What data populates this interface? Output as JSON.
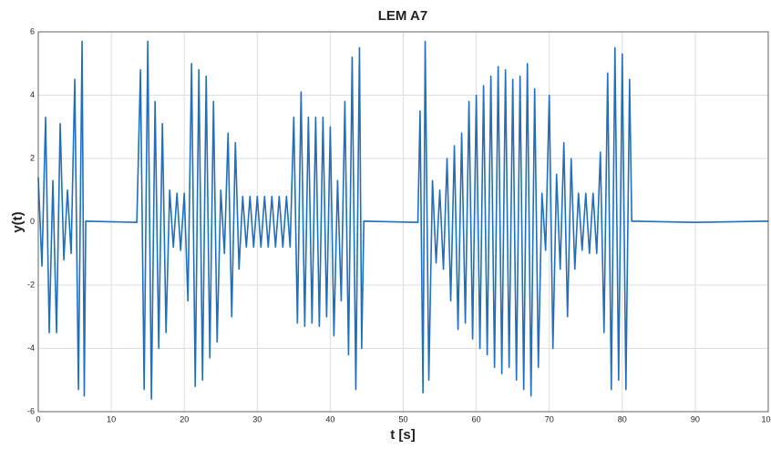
{
  "chart_data": {
    "type": "line",
    "title": "LEM A7",
    "x_label": "t [s]",
    "y_label": "y(t)",
    "xlim": [
      0,
      100
    ],
    "ylim": [
      -6,
      6
    ],
    "xticks": [
      0,
      10,
      20,
      30,
      40,
      50,
      60,
      70,
      80,
      90,
      100
    ],
    "yticks": [
      -6,
      -4,
      -2,
      0,
      2,
      4,
      6
    ],
    "grid": true,
    "x": [
      0,
      0.5,
      1,
      1.5,
      2,
      2.5,
      3,
      3.5,
      4,
      4.5,
      5,
      5.5,
      6,
      6.3,
      6.5,
      13.5,
      14,
      14.5,
      15,
      15.5,
      16,
      16.5,
      17,
      17.5,
      18,
      18.5,
      19,
      19.5,
      20,
      20.5,
      21,
      21.5,
      22,
      22.5,
      23,
      23.5,
      24,
      24.5,
      25,
      25.5,
      26,
      26.5,
      27,
      27.5,
      28,
      28.5,
      29,
      29.5,
      30,
      30.5,
      31,
      31.5,
      32,
      32.5,
      33,
      33.5,
      34,
      34.5,
      35,
      35.5,
      36,
      36.5,
      37,
      37.5,
      38,
      38.5,
      39,
      39.5,
      40,
      40.5,
      41,
      41.5,
      42,
      42.5,
      43,
      43.5,
      44,
      44.3,
      44.6,
      52,
      52.3,
      52.7,
      53,
      53.5,
      54,
      54.5,
      55,
      55.5,
      56,
      56.5,
      57,
      57.5,
      58,
      58.5,
      59,
      59.5,
      60,
      60.5,
      61,
      61.5,
      62,
      62.5,
      63,
      63.5,
      64,
      64.5,
      65,
      65.5,
      66,
      66.5,
      67,
      67.5,
      68,
      68.5,
      69,
      69.5,
      70,
      70.5,
      71,
      71.5,
      72,
      72.5,
      73,
      73.5,
      74,
      74.5,
      75,
      75.5,
      76,
      76.5,
      77,
      77.5,
      78,
      78.5,
      79,
      79.5,
      80,
      80.5,
      81,
      81.3,
      90,
      100
    ],
    "series": [
      {
        "color": "#1f6fbf",
        "values": [
          1.4,
          -1.4,
          3.3,
          -3.5,
          1.3,
          -3.5,
          3.1,
          -1.2,
          1.0,
          -1.0,
          4.5,
          -5.3,
          5.7,
          -5.5,
          0.02,
          -0.02,
          4.8,
          -5.3,
          5.7,
          -5.6,
          3.8,
          -4.0,
          3.1,
          -3.5,
          1.0,
          -0.8,
          0.9,
          -0.9,
          0.9,
          -2.5,
          5.0,
          -5.2,
          4.8,
          -5.0,
          4.6,
          -4.3,
          3.8,
          -3.8,
          1.0,
          -1.0,
          2.8,
          -3.0,
          2.5,
          -1.5,
          0.8,
          -0.8,
          0.8,
          -0.8,
          0.8,
          -0.8,
          0.8,
          -0.8,
          0.8,
          -0.8,
          0.8,
          -0.8,
          0.8,
          -0.8,
          3.3,
          -3.2,
          4.1,
          -3.3,
          3.3,
          -3.2,
          3.3,
          -3.3,
          3.3,
          -3.0,
          3.0,
          -3.6,
          1.3,
          -2.5,
          3.8,
          -4.2,
          5.2,
          -5.3,
          5.5,
          -4.0,
          0.02,
          -0.02,
          3.5,
          -5.4,
          5.7,
          -5.0,
          1.3,
          -1.3,
          1.0,
          -1.5,
          2.0,
          -2.5,
          2.4,
          -3.4,
          2.8,
          -3.2,
          3.8,
          -3.7,
          4.0,
          -4.0,
          4.3,
          -4.2,
          4.6,
          -4.6,
          4.9,
          -4.8,
          4.8,
          -4.6,
          4.5,
          -5.0,
          4.6,
          -5.3,
          5.0,
          -5.5,
          4.2,
          -4.6,
          0.9,
          -0.9,
          4.0,
          -4.0,
          1.5,
          -1.5,
          2.5,
          -3.0,
          2.0,
          -1.5,
          0.9,
          -0.9,
          0.9,
          -1.0,
          0.9,
          -1.0,
          2.2,
          -3.5,
          4.7,
          -5.3,
          5.5,
          -5.0,
          5.3,
          -5.3,
          4.5,
          0.02,
          -0.02,
          0.02
        ]
      }
    ]
  }
}
